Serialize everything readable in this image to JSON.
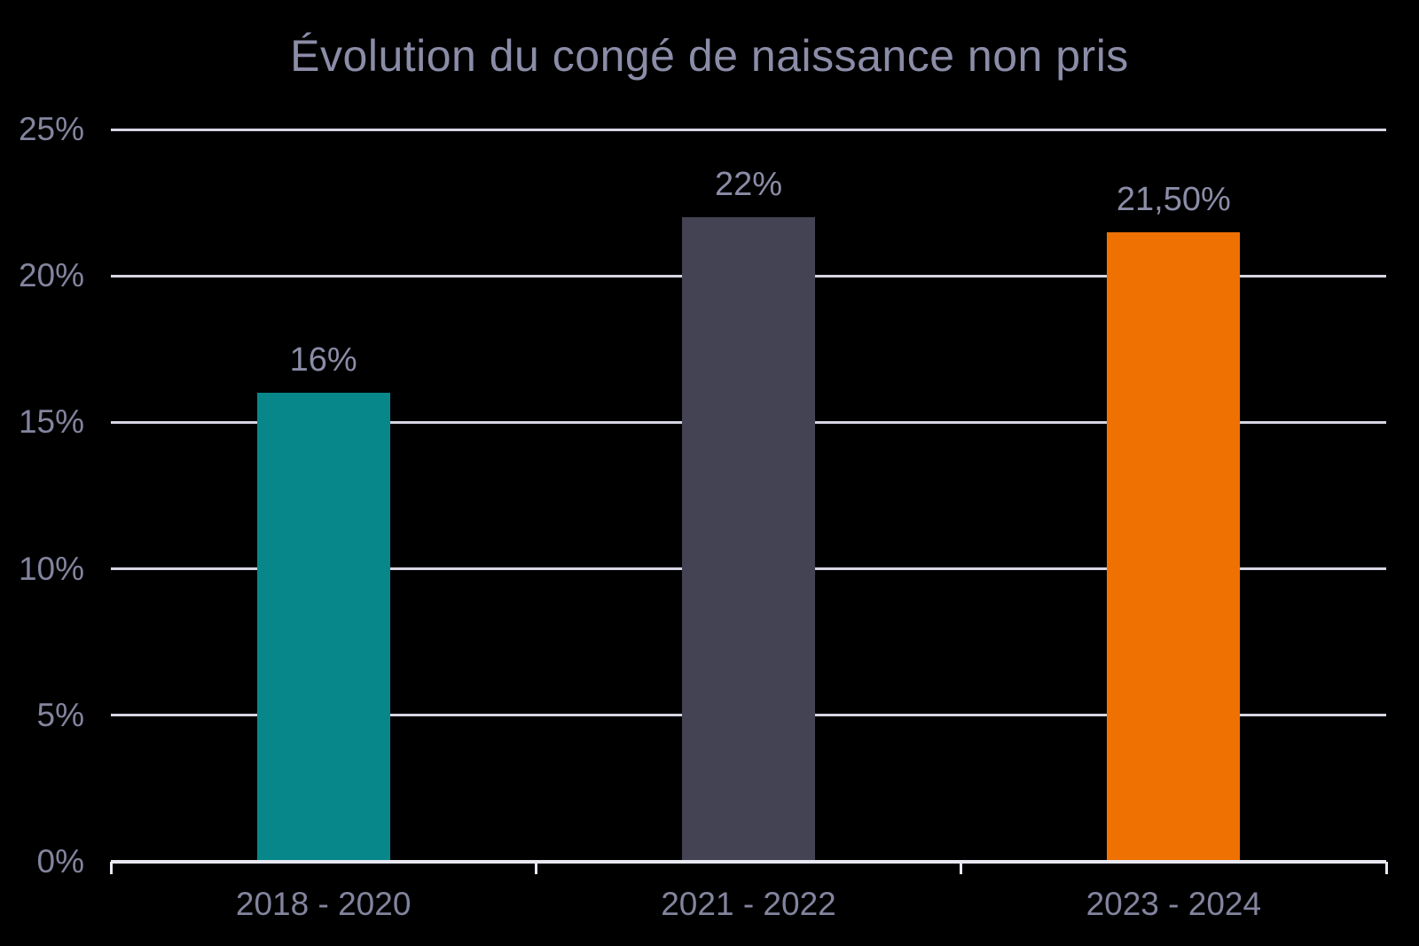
{
  "chart_data": {
    "type": "bar",
    "title": "Évolution du congé de naissance non pris",
    "categories": [
      "2018 - 2020",
      "2021 - 2022",
      "2023 - 2024"
    ],
    "values": [
      16,
      22,
      21.5
    ],
    "value_labels": [
      "16%",
      "22%",
      "21,50%"
    ],
    "bar_colors": [
      "#078789",
      "#434354",
      "#EE7102"
    ],
    "xlabel": "",
    "ylabel": "",
    "ylim": [
      0,
      25
    ],
    "yticks": [
      0,
      5,
      10,
      15,
      20,
      25
    ],
    "ytick_labels": [
      "0%",
      "5%",
      "10%",
      "15%",
      "20%",
      "25%"
    ],
    "grid": true,
    "legend": false
  },
  "style": {
    "background": "#000000",
    "title_color": "#8B8CA7",
    "label_color": "#8B8CA7",
    "tick_label_color": "#83849E",
    "gridline_color": "#D5D5E3",
    "axis_color": "#E8E8F2"
  }
}
